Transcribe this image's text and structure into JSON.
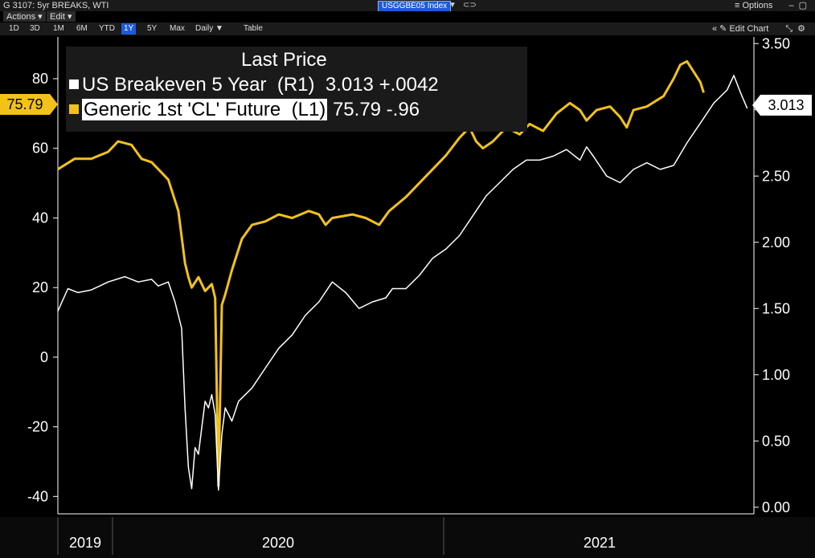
{
  "window": {
    "title": "G 3107: 5yr BREAKS, WTI",
    "ticker": "USGGBE05 Index",
    "options_label": "Options"
  },
  "menu": {
    "actions": "Actions",
    "edit": "Edit"
  },
  "toolbar": {
    "ranges": [
      "1D",
      "3D",
      "1M",
      "6M",
      "YTD",
      "1Y",
      "5Y",
      "Max"
    ],
    "active_range": "1Y",
    "interval": "Daily",
    "table": "Table",
    "edit_chart": "Edit Chart"
  },
  "legend": {
    "header": "Last Price",
    "r1_label": "US Breakeven 5 Year  (R1)",
    "r1_value": "3.013 +.0042",
    "l1_label": "Generic 1st 'CL' Future  (L1)",
    "l1_value": "75.79 -.96"
  },
  "badges": {
    "left": "75.79",
    "right": "3.013"
  },
  "colors": {
    "cl": "#f2c21b",
    "breakeven": "#ffffff",
    "active": "#1e5bd6"
  },
  "chart_data": {
    "type": "line",
    "x_axis_labels": [
      "2019",
      "2020",
      "2021"
    ],
    "left_axis": {
      "ticks": [
        "80",
        "60",
        "40",
        "20",
        "0",
        "-20",
        "-40"
      ],
      "range": [
        -45,
        92
      ]
    },
    "right_axis": {
      "ticks": [
        "3.50",
        "3.00",
        "2.50",
        "2.00",
        "1.50",
        "1.00",
        "0.50",
        "0.00"
      ],
      "range": [
        -0.05,
        3.55
      ]
    },
    "series": [
      {
        "name": "Generic 1st 'CL' Future (L1)",
        "axis": "left",
        "points": [
          [
            0,
            54
          ],
          [
            5,
            57
          ],
          [
            10,
            57
          ],
          [
            15,
            59
          ],
          [
            18,
            62
          ],
          [
            22,
            61
          ],
          [
            25,
            57
          ],
          [
            28,
            56
          ],
          [
            31,
            53
          ],
          [
            33,
            51
          ],
          [
            36,
            42
          ],
          [
            38,
            27
          ],
          [
            39,
            23
          ],
          [
            40,
            20
          ],
          [
            42,
            23
          ],
          [
            44,
            19
          ],
          [
            46,
            21
          ],
          [
            47,
            17
          ],
          [
            48,
            -37
          ],
          [
            49,
            15
          ],
          [
            50,
            18
          ],
          [
            52,
            25
          ],
          [
            55,
            34
          ],
          [
            58,
            38
          ],
          [
            62,
            39
          ],
          [
            66,
            41
          ],
          [
            70,
            40
          ],
          [
            75,
            42
          ],
          [
            78,
            41
          ],
          [
            80,
            38
          ],
          [
            82,
            40
          ],
          [
            88,
            41
          ],
          [
            92,
            40
          ],
          [
            96,
            38
          ],
          [
            99,
            42
          ],
          [
            104,
            46
          ],
          [
            110,
            52
          ],
          [
            116,
            58
          ],
          [
            120,
            63
          ],
          [
            123,
            66
          ],
          [
            125,
            62
          ],
          [
            127,
            60
          ],
          [
            130,
            62
          ],
          [
            134,
            66
          ],
          [
            138,
            64
          ],
          [
            141,
            67
          ],
          [
            145,
            65
          ],
          [
            149,
            70
          ],
          [
            153,
            73
          ],
          [
            156,
            71
          ],
          [
            158,
            68
          ],
          [
            161,
            71
          ],
          [
            165,
            72
          ],
          [
            168,
            69
          ],
          [
            170,
            66
          ],
          [
            172,
            71
          ],
          [
            176,
            72
          ],
          [
            181,
            75
          ],
          [
            184,
            80
          ],
          [
            186,
            84
          ],
          [
            188,
            85
          ],
          [
            190,
            82
          ],
          [
            192,
            79
          ],
          [
            193,
            76
          ]
        ]
      },
      {
        "name": "US Breakeven 5 Year (R1)",
        "axis": "right",
        "points": [
          [
            0,
            1.48
          ],
          [
            3,
            1.65
          ],
          [
            6,
            1.62
          ],
          [
            10,
            1.64
          ],
          [
            15,
            1.7
          ],
          [
            20,
            1.74
          ],
          [
            24,
            1.7
          ],
          [
            28,
            1.72
          ],
          [
            30,
            1.67
          ],
          [
            33,
            1.7
          ],
          [
            35,
            1.55
          ],
          [
            37,
            1.35
          ],
          [
            38,
            0.75
          ],
          [
            39,
            0.3
          ],
          [
            40,
            0.14
          ],
          [
            41,
            0.45
          ],
          [
            42,
            0.4
          ],
          [
            43,
            0.6
          ],
          [
            44,
            0.8
          ],
          [
            45,
            0.75
          ],
          [
            46,
            0.85
          ],
          [
            47,
            0.7
          ],
          [
            48,
            0.13
          ],
          [
            49,
            0.55
          ],
          [
            50,
            0.75
          ],
          [
            52,
            0.65
          ],
          [
            54,
            0.8
          ],
          [
            58,
            0.9
          ],
          [
            62,
            1.05
          ],
          [
            66,
            1.2
          ],
          [
            70,
            1.3
          ],
          [
            74,
            1.45
          ],
          [
            78,
            1.55
          ],
          [
            82,
            1.7
          ],
          [
            86,
            1.62
          ],
          [
            90,
            1.5
          ],
          [
            94,
            1.55
          ],
          [
            98,
            1.58
          ],
          [
            100,
            1.65
          ],
          [
            104,
            1.65
          ],
          [
            108,
            1.75
          ],
          [
            112,
            1.88
          ],
          [
            116,
            1.95
          ],
          [
            120,
            2.05
          ],
          [
            124,
            2.2
          ],
          [
            128,
            2.35
          ],
          [
            132,
            2.45
          ],
          [
            136,
            2.55
          ],
          [
            140,
            2.62
          ],
          [
            144,
            2.62
          ],
          [
            148,
            2.65
          ],
          [
            152,
            2.7
          ],
          [
            156,
            2.62
          ],
          [
            158,
            2.72
          ],
          [
            160,
            2.65
          ],
          [
            164,
            2.5
          ],
          [
            168,
            2.45
          ],
          [
            172,
            2.55
          ],
          [
            176,
            2.6
          ],
          [
            180,
            2.55
          ],
          [
            184,
            2.58
          ],
          [
            188,
            2.75
          ],
          [
            192,
            2.9
          ],
          [
            196,
            3.05
          ],
          [
            200,
            3.15
          ],
          [
            202,
            3.26
          ],
          [
            204,
            3.13
          ],
          [
            206,
            3.01
          ]
        ]
      }
    ]
  }
}
